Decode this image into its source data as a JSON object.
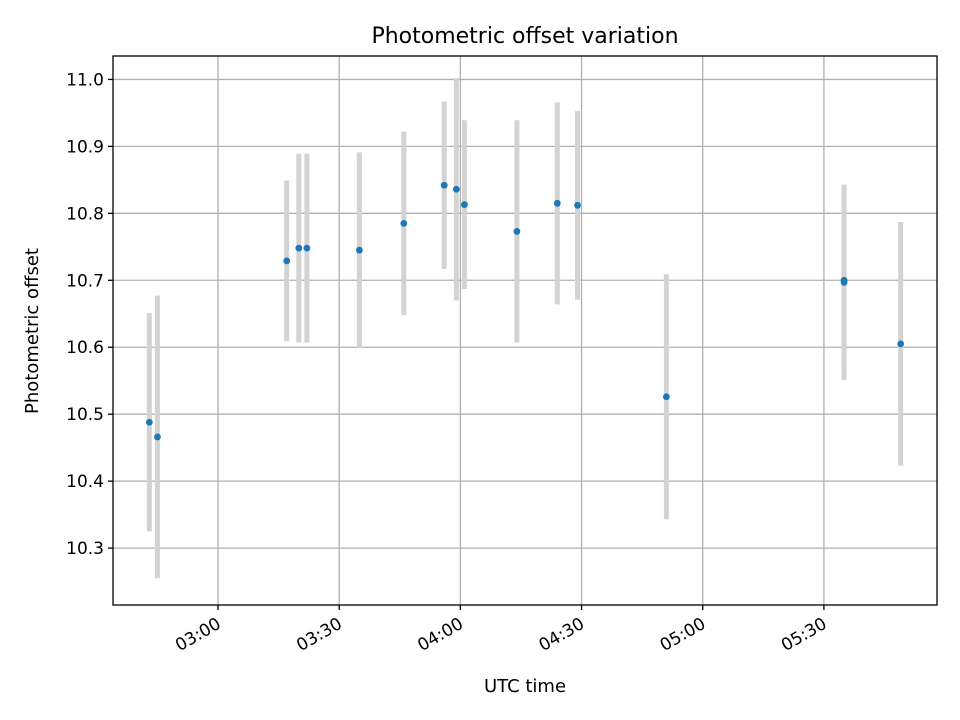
{
  "chart_data": {
    "type": "scatter",
    "title": "Photometric offset variation",
    "xlabel": "UTC time",
    "ylabel": "Photometric offset",
    "xlim": [
      "02:34",
      "05:58"
    ],
    "ylim": [
      10.215,
      11.035
    ],
    "x_ticks": [
      "03:00",
      "03:30",
      "04:00",
      "04:30",
      "05:00",
      "05:30"
    ],
    "y_ticks": [
      10.3,
      10.4,
      10.5,
      10.6,
      10.7,
      10.8,
      10.9,
      11.0
    ],
    "y_tick_labels": [
      "10.3",
      "10.4",
      "10.5",
      "10.6",
      "10.7",
      "10.8",
      "10.9",
      "11.0"
    ],
    "grid": true,
    "colors": {
      "points": "#1f77b4",
      "errorbars": "#d3d3d3"
    },
    "points": [
      {
        "x": "02:43",
        "y": 10.488,
        "err": 0.163
      },
      {
        "x": "02:45",
        "y": 10.466,
        "err": 0.211
      },
      {
        "x": "03:17",
        "y": 10.729,
        "err": 0.12
      },
      {
        "x": "03:20",
        "y": 10.748,
        "err": 0.141
      },
      {
        "x": "03:22",
        "y": 10.748,
        "err": 0.141
      },
      {
        "x": "03:35",
        "y": 10.745,
        "err": 0.146
      },
      {
        "x": "03:46",
        "y": 10.785,
        "err": 0.137
      },
      {
        "x": "03:56",
        "y": 10.842,
        "err": 0.125
      },
      {
        "x": "03:59",
        "y": 10.836,
        "err": 0.166
      },
      {
        "x": "04:01",
        "y": 10.813,
        "err": 0.126
      },
      {
        "x": "04:14",
        "y": 10.773,
        "err": 0.166
      },
      {
        "x": "04:24",
        "y": 10.815,
        "err": 0.151
      },
      {
        "x": "04:29",
        "y": 10.812,
        "err": 0.141
      },
      {
        "x": "04:51",
        "y": 10.526,
        "err": 0.183
      },
      {
        "x": "05:35",
        "y": 10.7,
        "err": 0.131
      },
      {
        "x": "05:35",
        "y": 10.697,
        "err": 0.146
      },
      {
        "x": "05:49",
        "y": 10.605,
        "err": 0.182
      }
    ]
  }
}
